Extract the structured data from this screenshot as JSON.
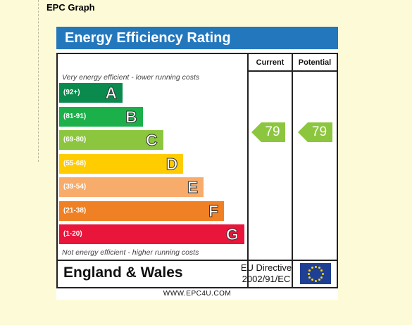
{
  "page": {
    "heading": "EPC Graph"
  },
  "epc": {
    "title": "Energy Efficiency Rating",
    "columns": {
      "current": "Current",
      "potential": "Potential"
    },
    "top_note": "Very energy efficient - lower running costs",
    "bottom_note": "Not energy efficient - higher running costs",
    "bands": [
      {
        "range": "(92+)",
        "letter": "A",
        "color": "#0b8a4e"
      },
      {
        "range": "(81-91)",
        "letter": "B",
        "color": "#1bb04a"
      },
      {
        "range": "(69-80)",
        "letter": "C",
        "color": "#8cc63e"
      },
      {
        "range": "(55-68)",
        "letter": "D",
        "color": "#ffcc00"
      },
      {
        "range": "(39-54)",
        "letter": "E",
        "color": "#f7ac6b"
      },
      {
        "range": "(21-38)",
        "letter": "F",
        "color": "#ef8023"
      },
      {
        "range": "(1-20)",
        "letter": "G",
        "color": "#e9153b"
      }
    ],
    "current_rating": "79",
    "potential_rating": "79",
    "rating_color": "#8cc63e",
    "region": "England & Wales",
    "directive_line1": "EU Directive",
    "directive_line2": "2002/91/EC",
    "website": "WWW.EPC4U.COM"
  },
  "colors": {
    "header_blue": "#2377bd",
    "page_background": "#fdfbd7"
  }
}
